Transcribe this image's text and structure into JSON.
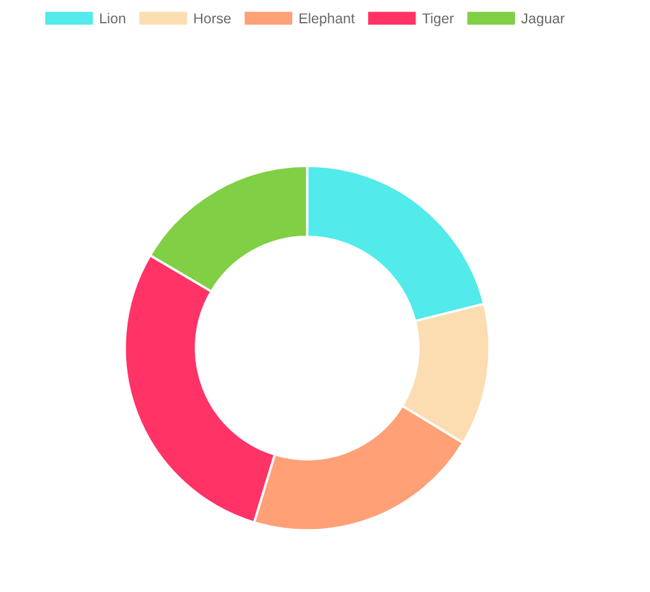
{
  "chart_data": {
    "type": "donut",
    "categories": [
      "Lion",
      "Horse",
      "Elephant",
      "Tiger",
      "Jaguar"
    ],
    "values": [
      21.1,
      12.6,
      21.0,
      28.8,
      16.5
    ],
    "colors": [
      "#52eaea",
      "#fbddb1",
      "#ffa077",
      "#ff3366",
      "#80cf45"
    ],
    "legend": "top"
  }
}
